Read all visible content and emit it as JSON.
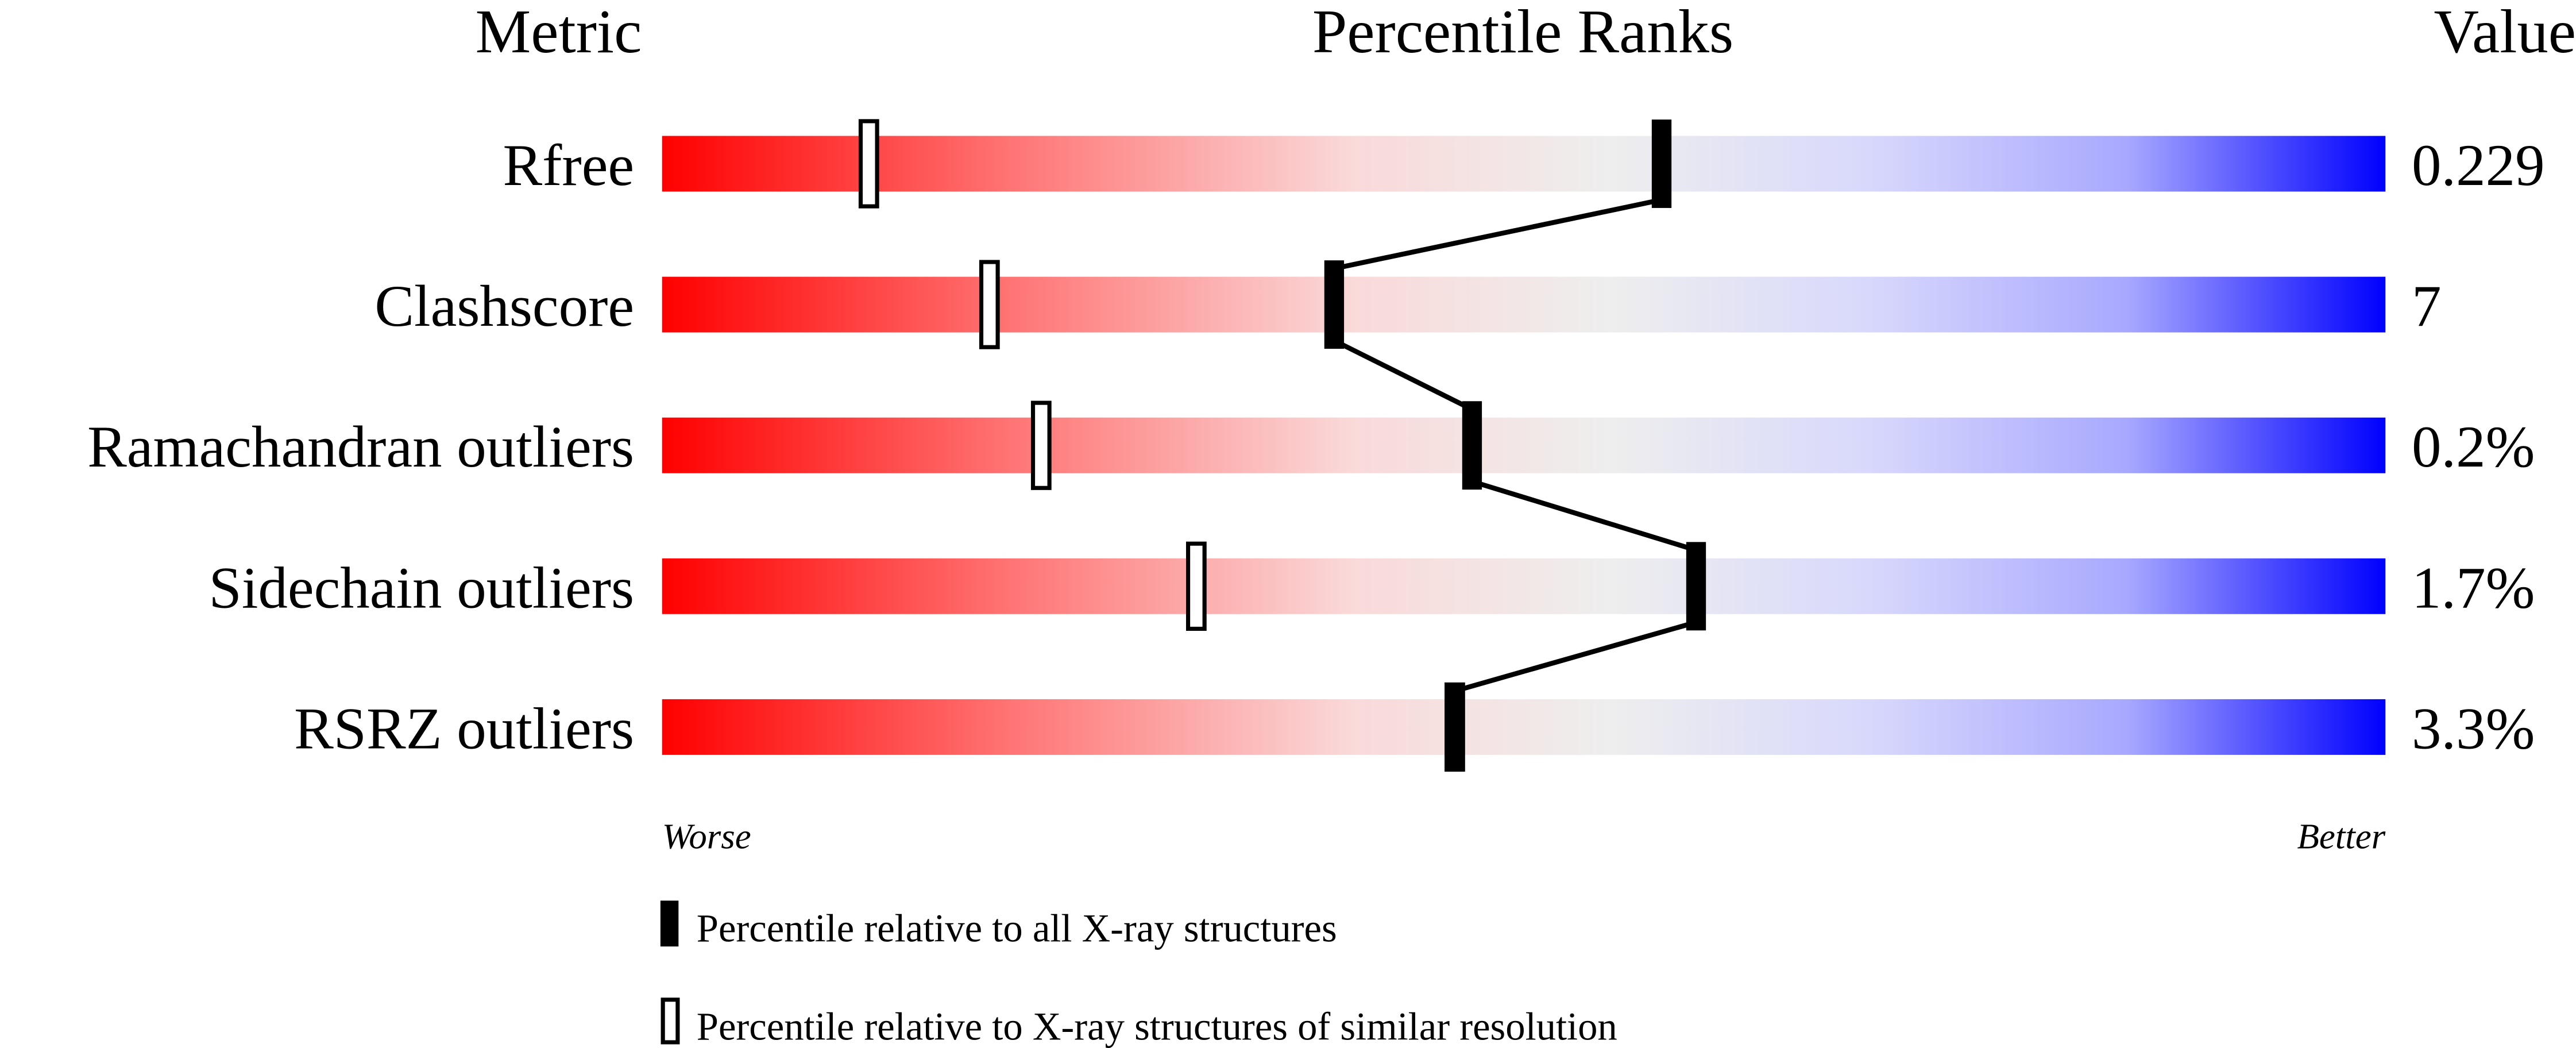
{
  "chart_data": {
    "type": "percentile-bar",
    "headers": {
      "metric": "Metric",
      "ranks": "Percentile Ranks",
      "value": "Value"
    },
    "xlim": [
      0,
      100
    ],
    "metrics": [
      {
        "name": "Rfree",
        "value": "0.229",
        "percentile_all": 58,
        "percentile_similar": 12
      },
      {
        "name": "Clashscore",
        "value": "7",
        "percentile_all": 39,
        "percentile_similar": 19
      },
      {
        "name": "Ramachandran outliers",
        "value": "0.2%",
        "percentile_all": 47,
        "percentile_similar": 22
      },
      {
        "name": "Sidechain outliers",
        "value": "1.7%",
        "percentile_all": 60,
        "percentile_similar": 31
      },
      {
        "name": "RSRZ outliers",
        "value": "3.3%",
        "percentile_all": 46,
        "percentile_similar": 46
      }
    ],
    "axis_labels": {
      "left": "Worse",
      "right": "Better"
    },
    "legend": [
      {
        "marker": "filled",
        "label": "Percentile relative to all X-ray structures"
      },
      {
        "marker": "open",
        "label": "Percentile relative to X-ray structures of similar resolution"
      }
    ],
    "colors": {
      "worse": "#ff0000",
      "middle": "#eeeeee",
      "better": "#0000ff",
      "marker": "#000000"
    }
  }
}
